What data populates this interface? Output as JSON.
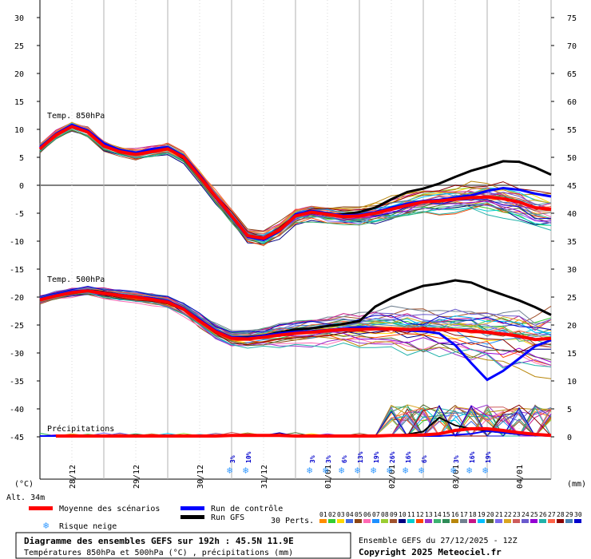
{
  "chart_data": {
    "type": "line",
    "left_axis": {
      "unit": "(°C)",
      "ticks": [
        30,
        25,
        20,
        15,
        10,
        5,
        0,
        -5,
        -10,
        -15,
        -20,
        -25,
        -30,
        -35,
        -40,
        -45
      ]
    },
    "right_axis": {
      "unit": "(mm)",
      "ticks": [
        75,
        70,
        65,
        60,
        55,
        50,
        45,
        40,
        35,
        30,
        25,
        20,
        15,
        10,
        5,
        0
      ]
    },
    "x_dates": [
      "28/12",
      "29/12",
      "30/12",
      "31/12",
      "01/01",
      "02/01",
      "03/01",
      "04/01"
    ],
    "altitude": "Alt. 34m",
    "x_hours": [
      0,
      6,
      12,
      18,
      24,
      30,
      36,
      42,
      48,
      54,
      60,
      66,
      72,
      78,
      84,
      90,
      96,
      102,
      108,
      114,
      120,
      126,
      132,
      138,
      144,
      150,
      156,
      162,
      168,
      174,
      180,
      186,
      192
    ],
    "panels": [
      {
        "label": "Temp. 850hPa",
        "offset": 0,
        "mean": [
          6.5,
          9,
          10.5,
          9.5,
          7,
          6,
          5.5,
          6,
          6.5,
          5,
          1.5,
          -2,
          -5.5,
          -9,
          -9.5,
          -8,
          -5.5,
          -4.8,
          -5.2,
          -5.6,
          -5.5,
          -5,
          -4.3,
          -3.6,
          -3,
          -2.8,
          -2.5,
          -2.2,
          -2.1,
          -2.4,
          -3,
          -4,
          -4.3
        ],
        "control": [
          6.8,
          9.2,
          10.8,
          9.8,
          7.5,
          6.3,
          5.8,
          6.5,
          6.8,
          5.2,
          1.8,
          -2.2,
          -5.7,
          -9.2,
          -9.8,
          -8.2,
          -5.2,
          -4.6,
          -5,
          -5.4,
          -5.3,
          -4.8,
          -4,
          -3.3,
          -2.8,
          -2.6,
          -2.2,
          -1.8,
          -1,
          -0.5,
          -0.8,
          -1.5,
          -2
        ],
        "gfs": [
          6.5,
          9,
          10.6,
          9.6,
          7.2,
          6,
          5.6,
          6.2,
          6.6,
          4.8,
          1.4,
          -2.2,
          -5.6,
          -9.1,
          -9.5,
          -7.9,
          -5.4,
          -4.9,
          -5.3,
          -5.2,
          -4.8,
          -4,
          -2.5,
          -1.2,
          -0.6,
          0.3,
          1.5,
          2.6,
          3.4,
          4.3,
          4.2,
          3.2,
          1.9
        ],
        "spread_early": 0.9,
        "spread_late": 2.8
      },
      {
        "label": "Temp. 500hPa",
        "offset": -30,
        "mean": [
          -20.5,
          -19.8,
          -19.2,
          -18.9,
          -19.3,
          -19.7,
          -20,
          -20.4,
          -20.9,
          -22.2,
          -24.3,
          -26.2,
          -27.4,
          -27.5,
          -27.2,
          -26.8,
          -26.5,
          -26.3,
          -26,
          -25.8,
          -25.8,
          -25.7,
          -25.7,
          -25.8,
          -25.7,
          -25.8,
          -25.9,
          -26.1,
          -26.3,
          -26.6,
          -27,
          -27.6,
          -27.4
        ],
        "control": [
          -20.3,
          -19.6,
          -19,
          -18.8,
          -19.2,
          -19.6,
          -19.9,
          -20.2,
          -20.7,
          -22,
          -24,
          -26,
          -27.2,
          -27.3,
          -26.9,
          -26.5,
          -26.2,
          -26.1,
          -25.9,
          -25.6,
          -25.4,
          -25.5,
          -25.7,
          -26,
          -26.1,
          -26.5,
          -28.6,
          -31.8,
          -34.8,
          -33.2,
          -31,
          -28.8,
          -27.7
        ],
        "gfs": [
          -20.5,
          -19.7,
          -19.2,
          -18.8,
          -19.1,
          -19.6,
          -20,
          -20.3,
          -20.8,
          -22.2,
          -24.3,
          -26,
          -27.2,
          -27.2,
          -26.9,
          -26.3,
          -25.8,
          -25.6,
          -25.2,
          -24.8,
          -24.3,
          -21.7,
          -20.2,
          -19,
          -18,
          -17.6,
          -17,
          -17.4,
          -18.6,
          -19.6,
          -20.6,
          -21.8,
          -23.2
        ],
        "spread_early": 0.8,
        "spread_late": 4.5
      }
    ],
    "precip": {
      "label": "Précipitations",
      "mean": [
        0,
        0,
        0,
        0,
        0,
        0,
        0,
        0,
        0,
        0,
        0,
        0,
        0.1,
        0.1,
        0.1,
        0.1,
        0,
        0,
        0,
        0,
        0,
        0,
        0.1,
        0.1,
        0.2,
        0.4,
        1,
        1.3,
        1.3,
        1,
        0.6,
        0.3,
        0.1
      ],
      "control": [
        0,
        0,
        0,
        0,
        0,
        0,
        0,
        0,
        0,
        0,
        0,
        0,
        0,
        0,
        0,
        0,
        0,
        0,
        0,
        0,
        0,
        0,
        0,
        0,
        0,
        0,
        0.2,
        0.4,
        0.9,
        0.6,
        0.3,
        0.1,
        0
      ],
      "gfs": [
        0,
        0,
        0,
        0,
        0,
        0,
        0,
        0,
        0,
        0,
        0,
        0,
        0,
        0,
        0,
        0,
        0,
        0,
        0,
        0,
        0,
        0,
        0.1,
        0.3,
        0.8,
        3.3,
        1.9,
        1.3,
        0.9,
        0.6,
        0.3,
        0.2,
        0.1
      ]
    },
    "snow_risk": [
      {
        "hour": 72,
        "pct": "3%"
      },
      {
        "hour": 78,
        "pct": "10%"
      },
      {
        "hour": 102,
        "pct": "3%"
      },
      {
        "hour": 108,
        "pct": "3%"
      },
      {
        "hour": 114,
        "pct": "6%"
      },
      {
        "hour": 120,
        "pct": "13%"
      },
      {
        "hour": 126,
        "pct": "19%"
      },
      {
        "hour": 132,
        "pct": "26%"
      },
      {
        "hour": 138,
        "pct": "16%"
      },
      {
        "hour": 144,
        "pct": "6%"
      },
      {
        "hour": 156,
        "pct": "3%"
      },
      {
        "hour": 162,
        "pct": "16%"
      },
      {
        "hour": 168,
        "pct": "19%"
      }
    ],
    "legend": {
      "mean": "Moyenne des scénarios",
      "control": "Run de contrôle",
      "gfs": "Run GFS",
      "snow": "Risque neige",
      "perts_label": "30 Perts.",
      "perts": [
        "01",
        "02",
        "03",
        "04",
        "05",
        "06",
        "07",
        "08",
        "09",
        "10",
        "11",
        "12",
        "13",
        "14",
        "15",
        "16",
        "17",
        "18",
        "19",
        "20",
        "21",
        "22",
        "23",
        "24",
        "25",
        "26",
        "27",
        "28",
        "29",
        "30"
      ]
    },
    "colors": {
      "mean": "#ff0000",
      "control": "#0000ff",
      "gfs": "#000000",
      "zero_line": "#808080",
      "snow": "#3399ff",
      "perts": [
        "#ff8c00",
        "#32cd32",
        "#ffd700",
        "#4169e1",
        "#8b4513",
        "#ff69b4",
        "#1e90ff",
        "#9acd32",
        "#a0522d",
        "#000080",
        "#00ced1",
        "#ff4500",
        "#9932cc",
        "#3cb371",
        "#2e8b57",
        "#b8860b",
        "#708090",
        "#c71585",
        "#00bfff",
        "#556b2f",
        "#7b68ee",
        "#daa520",
        "#cd5c5c",
        "#6a5acd",
        "#9400d3",
        "#20b2aa",
        "#ff6347",
        "#8b0000",
        "#4682b4",
        "#0000cd"
      ]
    }
  },
  "footer": {
    "title": "Diagramme des ensembles GEFS sur 192h : 45.5N 11.9E",
    "subtitle": "Températures 850hPa et 500hPa (°C) , précipitations (mm)",
    "run": "Ensemble GEFS du 27/12/2025 - 12Z",
    "copyright": "Copyright 2025 Meteociel.fr"
  }
}
